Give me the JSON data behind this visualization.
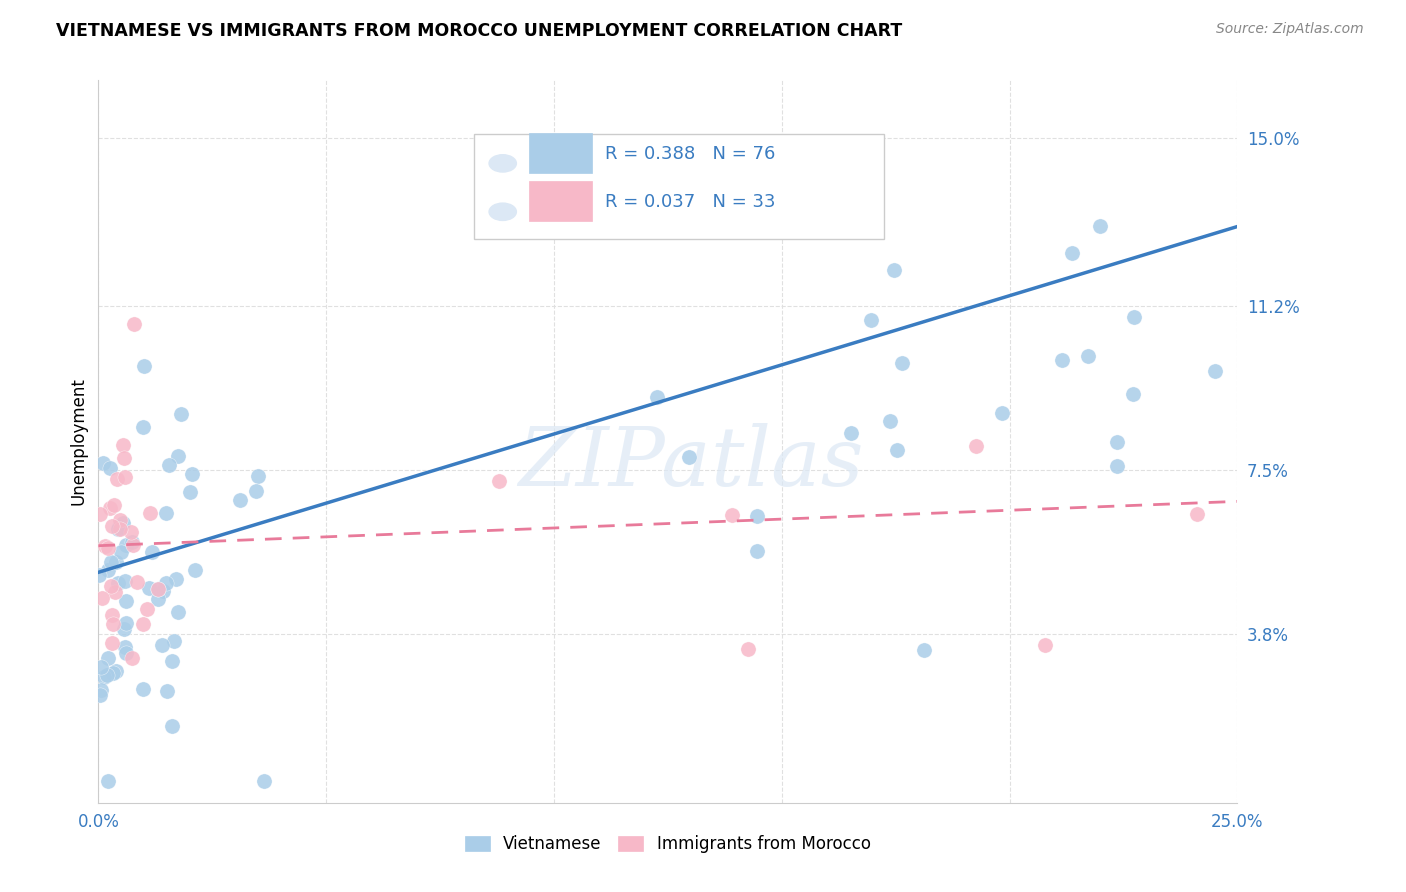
{
  "title": "VIETNAMESE VS IMMIGRANTS FROM MOROCCO UNEMPLOYMENT CORRELATION CHART",
  "source": "Source: ZipAtlas.com",
  "ylabel": "Unemployment",
  "ytick_labels": [
    "15.0%",
    "11.2%",
    "7.5%",
    "3.8%"
  ],
  "ytick_values": [
    0.15,
    0.112,
    0.075,
    0.038
  ],
  "xlim": [
    0.0,
    0.25
  ],
  "ylim": [
    0.0,
    0.163
  ],
  "watermark": "ZIPatlas",
  "color_blue": "#aacde8",
  "color_blue_edge": "#aacde8",
  "color_pink": "#f7b8c8",
  "color_pink_edge": "#f7b8c8",
  "line_color_blue": "#3a7cc1",
  "line_color_pink": "#e87a9a",
  "tick_color_blue": "#3a7cc1",
  "grid_color": "#e0e0e0",
  "bottom_legend_labels": [
    "Vietnamese",
    "Immigrants from Morocco"
  ]
}
